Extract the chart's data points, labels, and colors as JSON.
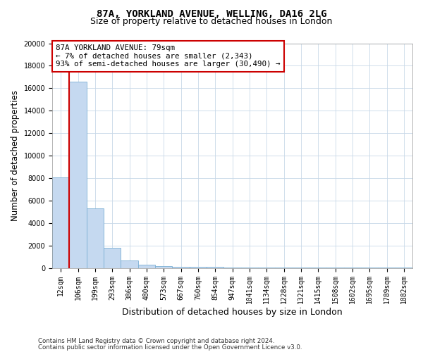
{
  "title_line1": "87A, YORKLAND AVENUE, WELLING, DA16 2LG",
  "title_line2": "Size of property relative to detached houses in London",
  "xlabel": "Distribution of detached houses by size in London",
  "ylabel": "Number of detached properties",
  "bar_color": "#c5d9f0",
  "bar_edge_color": "#7bafd4",
  "categories": [
    "12sqm",
    "106sqm",
    "199sqm",
    "293sqm",
    "386sqm",
    "480sqm",
    "573sqm",
    "667sqm",
    "760sqm",
    "854sqm",
    "947sqm",
    "1041sqm",
    "1134sqm",
    "1228sqm",
    "1321sqm",
    "1415sqm",
    "1508sqm",
    "1602sqm",
    "1695sqm",
    "1789sqm",
    "1882sqm"
  ],
  "values": [
    8050,
    16600,
    5300,
    1800,
    650,
    310,
    180,
    130,
    90,
    70,
    50,
    35,
    25,
    20,
    15,
    12,
    10,
    8,
    8,
    8,
    8
  ],
  "ylim": [
    0,
    20000
  ],
  "yticks": [
    0,
    2000,
    4000,
    6000,
    8000,
    10000,
    12000,
    14000,
    16000,
    18000,
    20000
  ],
  "red_line_x": 0.5,
  "annotation_text": "87A YORKLAND AVENUE: 79sqm\n← 7% of detached houses are smaller (2,343)\n93% of semi-detached houses are larger (30,490) →",
  "annotation_box_color": "#ffffff",
  "annotation_box_edge_color": "#cc0000",
  "footer_line1": "Contains HM Land Registry data © Crown copyright and database right 2024.",
  "footer_line2": "Contains public sector information licensed under the Open Government Licence v3.0.",
  "background_color": "#ffffff",
  "grid_color": "#c8d8e8",
  "title_fontsize": 10,
  "subtitle_fontsize": 9,
  "tick_fontsize": 7,
  "ylabel_fontsize": 8.5,
  "xlabel_fontsize": 9
}
